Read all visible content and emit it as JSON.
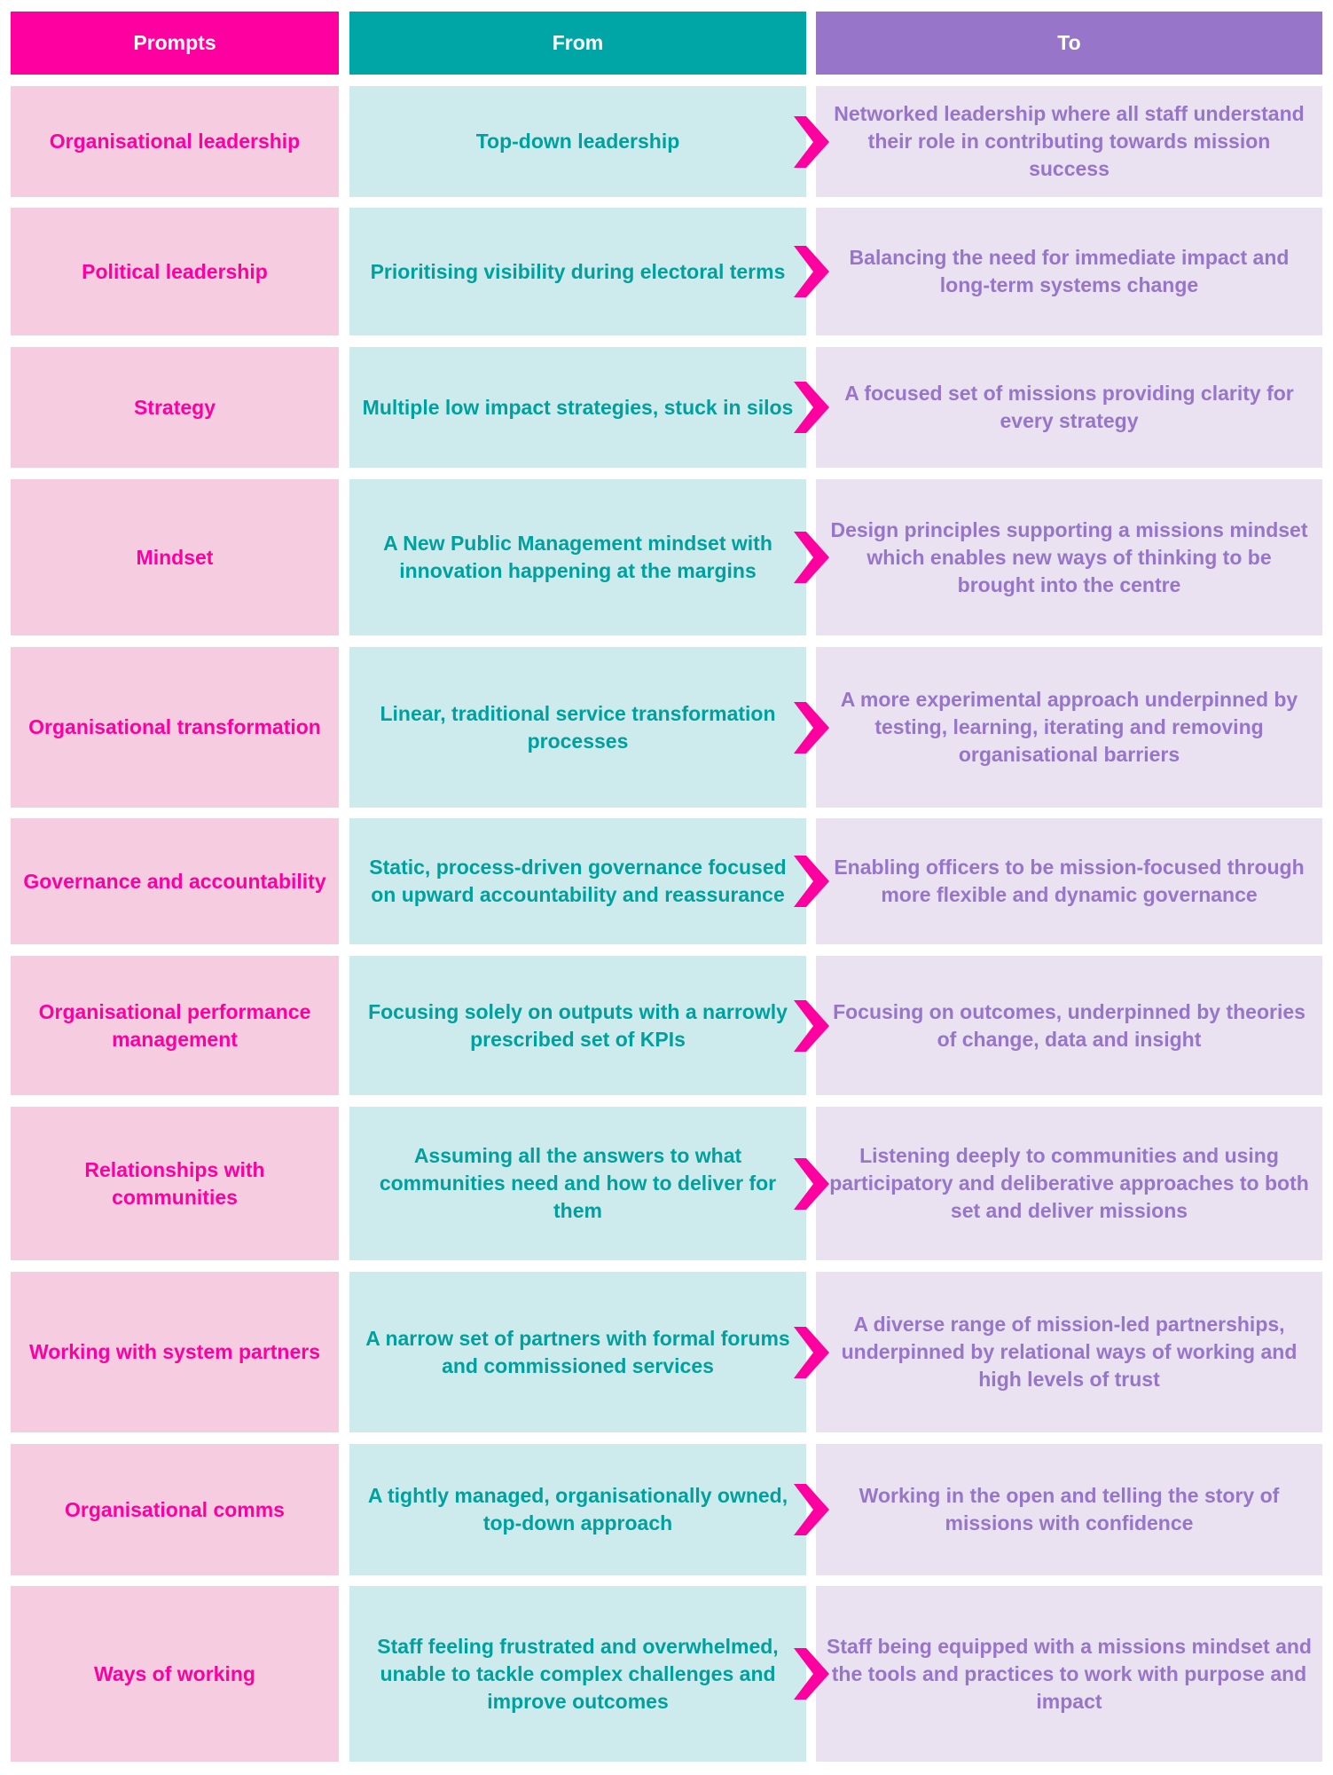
{
  "colors": {
    "prompts": "#FF00A0",
    "from": "#00A6A6",
    "to": "#9775C8"
  },
  "headers": {
    "prompts": "Prompts",
    "from": "From",
    "to": "To"
  },
  "rows": [
    {
      "prompt": "Organisational leadership",
      "from": "Top-down leadership",
      "to": "Networked leadership where all staff understand their role in contributing towards mission success"
    },
    {
      "prompt": "Political leadership",
      "from": "Prioritising visibility during electoral terms",
      "to": "Balancing the need for immediate impact and long-term systems change"
    },
    {
      "prompt": "Strategy",
      "from": "Multiple low impact strategies, stuck in silos",
      "to": "A focused set of missions providing clarity for every strategy"
    },
    {
      "prompt": "Mindset",
      "from": "A New Public Management mindset with innovation happening at the margins",
      "to": "Design principles supporting a missions mindset which enables new ways of thinking to be brought into the centre"
    },
    {
      "prompt": "Organisational transformation",
      "from": "Linear, traditional service transformation processes",
      "to": "A more experimental approach underpinned by testing, learning, iterating and removing organisational barriers"
    },
    {
      "prompt": "Governance and accountability",
      "from": "Static, process-driven governance focused on upward accountability and reassurance",
      "to": "Enabling officers to be mission-focused through more flexible and dynamic governance"
    },
    {
      "prompt": "Organisational performance management",
      "from": "Focusing solely on outputs with a narrowly prescribed set of KPIs",
      "to": "Focusing on outcomes, underpinned by theories of change, data and insight"
    },
    {
      "prompt": "Relationships with communities",
      "from": "Assuming all the answers to what communities need and how to deliver for them",
      "to": "Listening deeply to communities and using participatory and deliberative approaches to both set and deliver missions"
    },
    {
      "prompt": "Working with system partners",
      "from": "A narrow set of partners with formal forums and commissioned services",
      "to": "A diverse range of mission-led partnerships, underpinned by relational ways of working and high levels of trust"
    },
    {
      "prompt": "Organisational comms",
      "from": "A tightly managed, organisationally owned, top-down approach",
      "to": "Working in the open and telling the story of missions with confidence"
    },
    {
      "prompt": "Ways of working",
      "from": "Staff feeling frustrated and overwhelmed, unable to tackle complex challenges and improve outcomes",
      "to": "Staff being equipped with a missions mindset and the tools and practices to work with purpose and impact"
    }
  ]
}
